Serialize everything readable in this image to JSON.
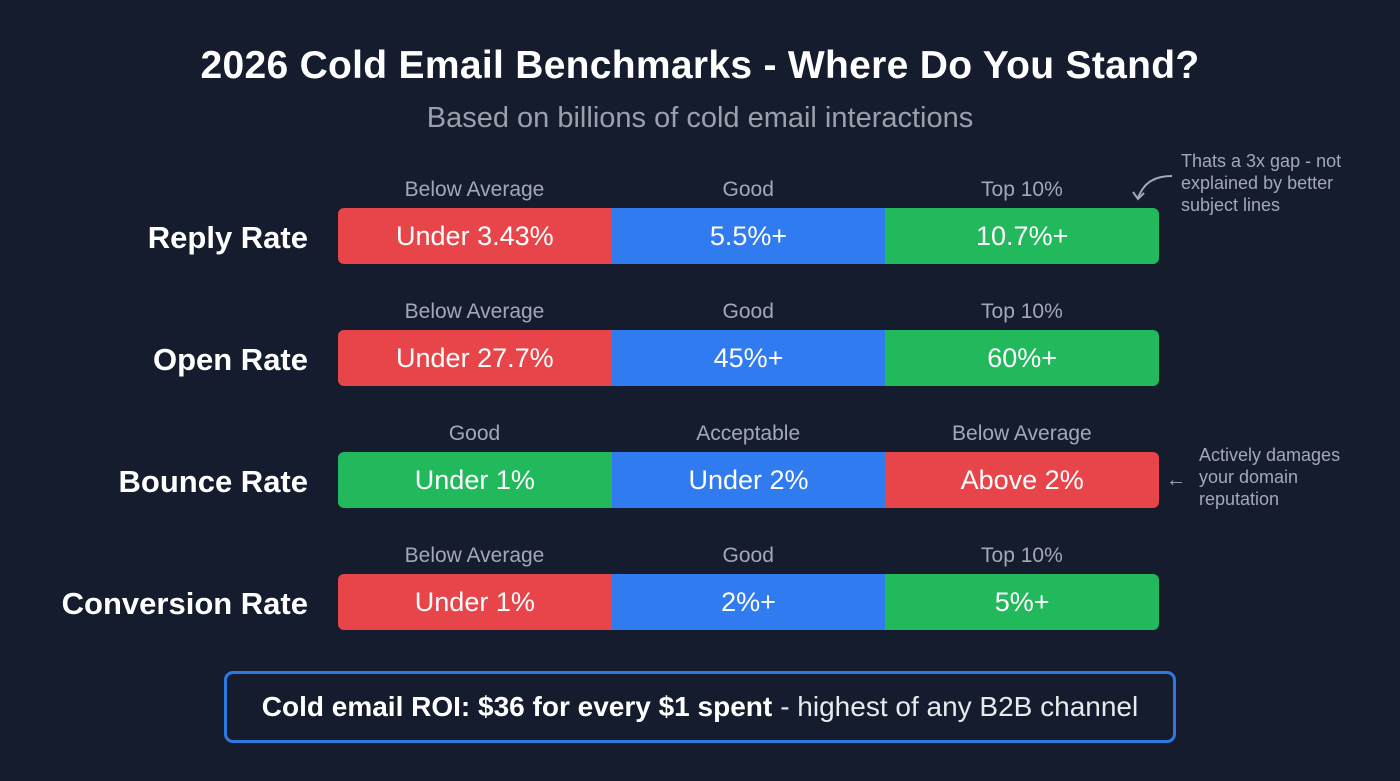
{
  "title": "2026 Cold Email Benchmarks - Where Do You Stand?",
  "subtitle": "Based on billions of cold email interactions",
  "colors": {
    "red": "#e8454a",
    "blue": "#2f7bef",
    "green": "#22b85c",
    "background": "#141c2e"
  },
  "rows": [
    {
      "label": "Reply Rate",
      "tiers": [
        {
          "label": "Below Average",
          "value": "Under 3.43%",
          "color": "#e8454a"
        },
        {
          "label": "Good",
          "value": "5.5%+",
          "color": "#2f7bef"
        },
        {
          "label": "Top 10%",
          "value": "10.7%+",
          "color": "#22b85c"
        }
      ]
    },
    {
      "label": "Open Rate",
      "tiers": [
        {
          "label": "Below Average",
          "value": "Under 27.7%",
          "color": "#e8454a"
        },
        {
          "label": "Good",
          "value": "45%+",
          "color": "#2f7bef"
        },
        {
          "label": "Top 10%",
          "value": "60%+",
          "color": "#22b85c"
        }
      ]
    },
    {
      "label": "Bounce Rate",
      "tiers": [
        {
          "label": "Good",
          "value": "Under 1%",
          "color": "#22b85c"
        },
        {
          "label": "Acceptable",
          "value": "Under 2%",
          "color": "#2f7bef"
        },
        {
          "label": "Below Average",
          "value": "Above 2%",
          "color": "#e8454a"
        }
      ]
    },
    {
      "label": "Conversion Rate",
      "tiers": [
        {
          "label": "Below Average",
          "value": "Under 1%",
          "color": "#e8454a"
        },
        {
          "label": "Good",
          "value": "2%+",
          "color": "#2f7bef"
        },
        {
          "label": "Top 10%",
          "value": "5%+",
          "color": "#22b85c"
        }
      ]
    }
  ],
  "notes": {
    "reply": "Thats a 3x gap - not explained by better subject lines",
    "bounce": "Actively damages your domain reputation",
    "bounce_arrow": "←"
  },
  "roi": {
    "bold": "Cold email ROI: $36 for every $1 spent",
    "rest": "- highest of any B2B channel"
  }
}
